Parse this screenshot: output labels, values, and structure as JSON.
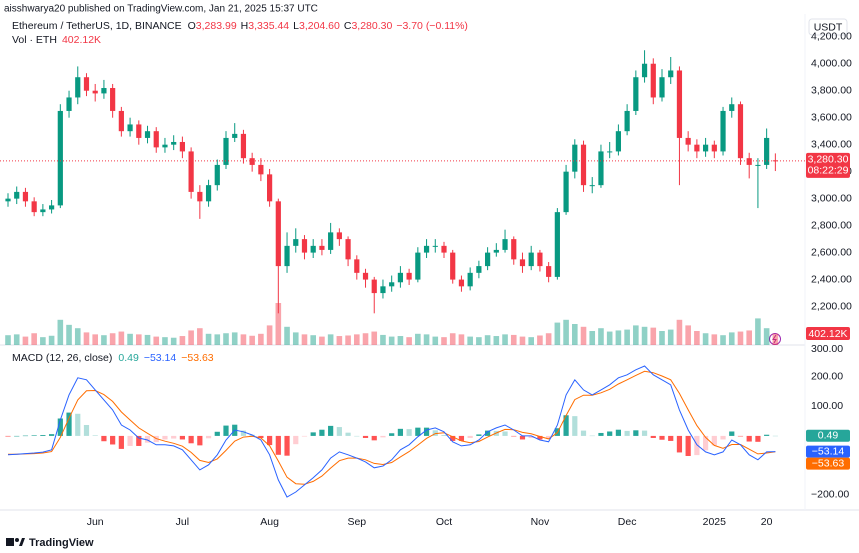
{
  "header": {
    "publisher": "aisshwarya20 published on TradingView.com, Jan 21, 2025 15:37 UTC"
  },
  "chart_data": [
    {
      "type": "candlestick",
      "title": "Ethereum / TetherUS, 1D, BINANCE",
      "ohlc_legend": [
        {
          "key": "O",
          "value": "3,283.99"
        },
        {
          "key": "H",
          "value": "3,335.44"
        },
        {
          "key": "L",
          "value": "3,204.60"
        },
        {
          "key": "C",
          "value": "3,280.30"
        }
      ],
      "change": "−3.70 (−0.11%)",
      "currency": "USDT",
      "up_color": "#089981",
      "down_color": "#f23645",
      "categories": [
        null,
        null,
        null,
        null,
        null,
        null,
        null,
        null,
        null,
        null,
        "Jun",
        null,
        null,
        null,
        null,
        null,
        null,
        null,
        null,
        null,
        "Jul",
        null,
        null,
        null,
        null,
        null,
        null,
        null,
        null,
        null,
        "Aug",
        null,
        null,
        null,
        null,
        null,
        null,
        null,
        null,
        null,
        "Sep",
        null,
        null,
        null,
        null,
        null,
        null,
        null,
        null,
        null,
        "Oct",
        null,
        null,
        null,
        null,
        null,
        null,
        null,
        null,
        null,
        null,
        "Nov",
        null,
        null,
        null,
        null,
        null,
        null,
        null,
        null,
        null,
        "Dec",
        null,
        null,
        null,
        null,
        null,
        null,
        null,
        null,
        null,
        "2025",
        null,
        null,
        null,
        null,
        null,
        "20",
        null
      ],
      "open": [
        2980,
        3000,
        3050,
        2980,
        2900,
        2920,
        2950,
        3650,
        3750,
        3900,
        3800,
        3780,
        3820,
        3650,
        3500,
        3550,
        3450,
        3500,
        3380,
        3400,
        3420,
        3350,
        3050,
        2980,
        3100,
        3250,
        3450,
        3480,
        3300,
        3250,
        3180,
        2980,
        2500,
        2650,
        2700,
        2600,
        2650,
        2620,
        2750,
        2700,
        2550,
        2450,
        2400,
        2300,
        2350,
        2380,
        2450,
        2400,
        2600,
        2650,
        2650,
        2600,
        2400,
        2350,
        2450,
        2500,
        2600,
        2620,
        2700,
        2550,
        2500,
        2600,
        2500,
        2420,
        2900,
        3200,
        3400,
        3100,
        3100,
        3350,
        3350,
        3500,
        3650,
        3900,
        4000,
        3750,
        3900,
        3950,
        3450,
        3400,
        3350,
        3400,
        3350,
        3650,
        3700,
        3300,
        3250,
        3250,
        3283.99
      ],
      "high": [
        3040,
        3090,
        3080,
        3010,
        2960,
        2990,
        3700,
        3800,
        3980,
        3930,
        3850,
        3880,
        3850,
        3680,
        3600,
        3580,
        3540,
        3530,
        3450,
        3470,
        3460,
        3380,
        3100,
        3140,
        3290,
        3500,
        3560,
        3510,
        3340,
        3300,
        3220,
        3000,
        2750,
        2780,
        2730,
        2700,
        2700,
        2820,
        2780,
        2720,
        2580,
        2480,
        2420,
        2400,
        2430,
        2500,
        2480,
        2640,
        2700,
        2700,
        2680,
        2620,
        2430,
        2490,
        2540,
        2640,
        2670,
        2770,
        2720,
        2600,
        2650,
        2620,
        2530,
        2930,
        3250,
        3440,
        3430,
        3160,
        3400,
        3420,
        3550,
        3700,
        3950,
        4100,
        4040,
        3960,
        4050,
        3980,
        3500,
        3440,
        3450,
        3430,
        3680,
        3750,
        3720,
        3340,
        3300,
        3520,
        3335.44
      ],
      "low": [
        2940,
        2960,
        2940,
        2870,
        2870,
        2890,
        2930,
        3600,
        3700,
        3760,
        3720,
        3740,
        3600,
        3460,
        3460,
        3400,
        3410,
        3340,
        3340,
        3360,
        3300,
        3000,
        2850,
        2940,
        3060,
        3220,
        3420,
        3260,
        3200,
        3130,
        2940,
        2150,
        2450,
        2600,
        2550,
        2560,
        2580,
        2590,
        2650,
        2500,
        2400,
        2340,
        2150,
        2260,
        2310,
        2340,
        2360,
        2380,
        2560,
        2600,
        2560,
        2370,
        2310,
        2320,
        2410,
        2470,
        2570,
        2600,
        2510,
        2450,
        2470,
        2460,
        2380,
        2400,
        2880,
        3150,
        3050,
        3040,
        3080,
        3300,
        3320,
        3470,
        3620,
        3860,
        3700,
        3720,
        3850,
        3100,
        3350,
        3300,
        3310,
        3300,
        3320,
        3600,
        3250,
        3150,
        2930,
        3220,
        3204.6
      ],
      "close": [
        3000,
        3050,
        2980,
        2900,
        2920,
        2950,
        3650,
        3750,
        3900,
        3800,
        3780,
        3820,
        3650,
        3500,
        3550,
        3450,
        3500,
        3380,
        3400,
        3420,
        3350,
        3050,
        2980,
        3100,
        3250,
        3450,
        3480,
        3300,
        3250,
        3180,
        2980,
        2500,
        2650,
        2700,
        2600,
        2650,
        2620,
        2750,
        2700,
        2550,
        2450,
        2400,
        2300,
        2350,
        2380,
        2450,
        2400,
        2600,
        2650,
        2650,
        2600,
        2400,
        2350,
        2450,
        2500,
        2600,
        2620,
        2700,
        2550,
        2500,
        2600,
        2500,
        2420,
        2900,
        3200,
        3400,
        3100,
        3100,
        3350,
        3350,
        3500,
        3650,
        3900,
        4000,
        3750,
        3900,
        3950,
        3450,
        3400,
        3350,
        3400,
        3350,
        3650,
        3700,
        3300,
        3250,
        3250,
        3450,
        3280.3
      ],
      "ylim": [
        1930,
        4250
      ],
      "yticks": [
        {
          "value": 2200,
          "label": "2,200.00"
        },
        {
          "value": 2400,
          "label": "2,400.00"
        },
        {
          "value": 2600,
          "label": "2,600.00"
        },
        {
          "value": 2800,
          "label": "2,800.00"
        },
        {
          "value": 3000,
          "label": "3,000.00"
        },
        {
          "value": 3200,
          "label": "3,200.00"
        },
        {
          "value": 3400,
          "label": "3,400.00"
        },
        {
          "value": 3600,
          "label": "3,600.00"
        },
        {
          "value": 3800,
          "label": "3,800.00"
        },
        {
          "value": 4000,
          "label": "4,000.00"
        },
        {
          "value": 4200,
          "label": "4,200.00"
        }
      ],
      "last_price_label": "3,280.30",
      "countdown": "08:22:29",
      "volume_title": "Vol · ETH",
      "volume_label": "402.12K",
      "volume": [
        350000,
        380000,
        300000,
        420000,
        280000,
        330000,
        900000,
        720000,
        600000,
        450000,
        380000,
        350000,
        420000,
        480000,
        400000,
        380000,
        360000,
        300000,
        280000,
        260000,
        320000,
        520000,
        600000,
        400000,
        380000,
        420000,
        450000,
        380000,
        330000,
        400000,
        700000,
        1500000,
        650000,
        450000,
        380000,
        350000,
        300000,
        380000,
        320000,
        340000,
        380000,
        420000,
        480000,
        360000,
        300000,
        320000,
        280000,
        400000,
        380000,
        300000,
        280000,
        420000,
        380000,
        300000,
        280000,
        350000,
        320000,
        380000,
        360000,
        300000,
        280000,
        340000,
        420000,
        800000,
        900000,
        750000,
        650000,
        500000,
        600000,
        480000,
        520000,
        550000,
        700000,
        650000,
        620000,
        500000,
        550000,
        900000,
        700000,
        500000,
        420000,
        380000,
        350000,
        450000,
        480000,
        520000,
        950000,
        600000,
        402120
      ]
    },
    {
      "type": "macd",
      "title": "MACD (12, 26, close)",
      "histogram": {
        "label": "0.49",
        "colors": {
          "rising_above": "#26a69a",
          "falling_above": "#b2dfdb",
          "falling_below": "#ff5252",
          "rising_below": "#ffcdd2"
        },
        "values": [
          -2,
          0,
          1,
          2,
          3,
          6,
          59,
          79,
          75,
          37,
          2,
          -18,
          -29,
          -44,
          -34,
          -34,
          -23,
          -21,
          -12,
          -9,
          -12,
          -25,
          -32,
          -8,
          14,
          35,
          38,
          18,
          4,
          -7,
          -31,
          -64,
          -67,
          -28,
          -2,
          12,
          21,
          34,
          30,
          11,
          0,
          -7,
          -15,
          -5,
          9,
          24,
          23,
          28,
          28,
          19,
          3,
          -17,
          -17,
          -7,
          5,
          18,
          17,
          15,
          -1,
          -12,
          -7,
          -12,
          -10,
          26,
          70,
          67,
          18,
          1,
          10,
          15,
          21,
          17,
          19,
          18,
          -7,
          -13,
          -17,
          -56,
          -68,
          -65,
          -49,
          -32,
          -12,
          15,
          -1,
          -19,
          -20,
          4,
          0.49
        ]
      },
      "macd": {
        "label": "−53.14",
        "color": "#2962ff",
        "values": [
          -64,
          -62,
          -60,
          -58,
          -55,
          -47,
          54,
          139,
          197,
          190,
          156,
          122,
          88,
          37,
          20,
          -7,
          -14,
          -30,
          -30,
          -34,
          -47,
          -81,
          -115,
          -98,
          -64,
          -14,
          20,
          14,
          3,
          -14,
          -64,
          -149,
          -207,
          -190,
          -166,
          -142,
          -115,
          -75,
          -54,
          -64,
          -75,
          -88,
          -108,
          -102,
          -81,
          -47,
          -30,
          -3,
          20,
          27,
          14,
          -20,
          -34,
          -30,
          -14,
          14,
          27,
          37,
          20,
          0,
          0,
          -14,
          -20,
          37,
          139,
          190,
          156,
          139,
          156,
          173,
          197,
          207,
          224,
          237,
          207,
          190,
          173,
          88,
          20,
          -30,
          -54,
          -64,
          -54,
          -14,
          -30,
          -64,
          -81,
          -54,
          -53.14
        ]
      },
      "signal": {
        "label": "−53.63",
        "color": "#ff6d00",
        "values": [
          -62,
          -62,
          -61,
          -60,
          -58,
          -53,
          -5,
          60,
          122,
          153,
          154,
          140,
          117,
          81,
          54,
          27,
          9,
          -9,
          -18,
          -25,
          -35,
          -56,
          -83,
          -90,
          -78,
          -49,
          -18,
          -4,
          -1,
          -7,
          -33,
          -85,
          -140,
          -162,
          -164,
          -154,
          -136,
          -109,
          -84,
          -75,
          -75,
          -81,
          -93,
          -97,
          -90,
          -71,
          -53,
          -31,
          -8,
          8,
          11,
          -3,
          -17,
          -23,
          -19,
          -4,
          10,
          22,
          21,
          12,
          7,
          -2,
          -10,
          11,
          69,
          123,
          138,
          138,
          146,
          158,
          176,
          190,
          205,
          219,
          214,
          203,
          190,
          144,
          88,
          35,
          -5,
          -32,
          -42,
          -29,
          -29,
          -45,
          -61,
          -58,
          -53.63
        ]
      },
      "ylim": [
        -251,
        308
      ],
      "yticks": [
        {
          "value": -200,
          "label": "−200.00"
        },
        {
          "value": 100,
          "label": "100.00"
        },
        {
          "value": 200,
          "label": "200.00"
        },
        {
          "value": 300,
          "label": "300.00"
        }
      ]
    }
  ],
  "footer": {
    "brand": "TradingView"
  }
}
